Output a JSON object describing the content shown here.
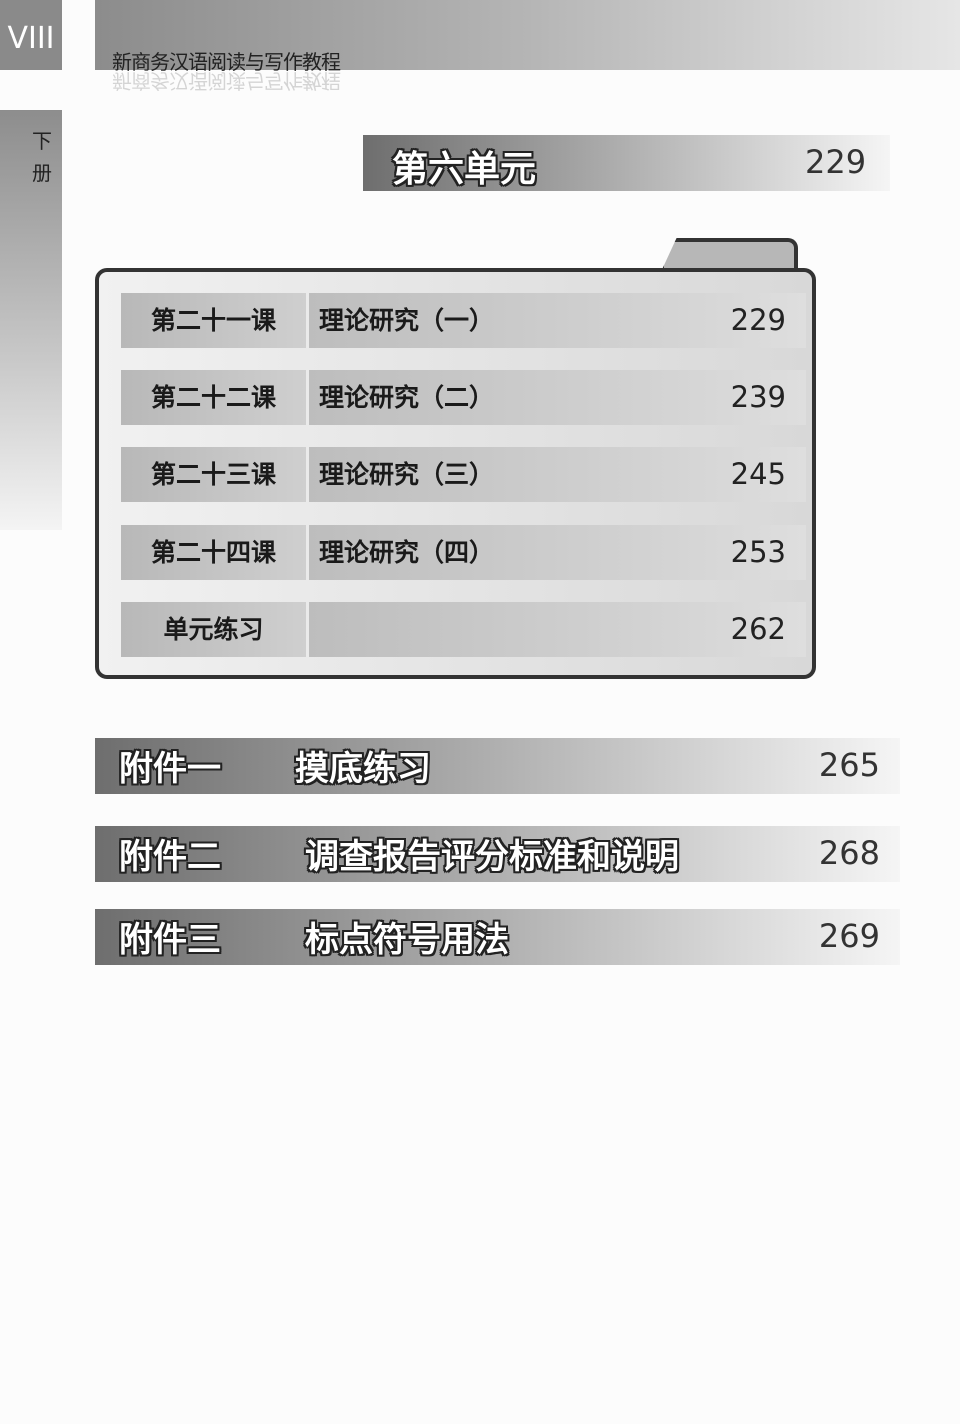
{
  "page_number": "VIII",
  "book_title": "新商务汉语阅读与写作教程",
  "volume": "下册",
  "unit": {
    "title": "第六单元",
    "page": "229"
  },
  "lessons": [
    {
      "label": "第二十一课",
      "title": "理论研究（一）",
      "page": "229"
    },
    {
      "label": "第二十二课",
      "title": "理论研究（二）",
      "page": "239"
    },
    {
      "label": "第二十三课",
      "title": "理论研究（三）",
      "page": "245"
    },
    {
      "label": "第二十四课",
      "title": "理论研究（四）",
      "page": "253"
    },
    {
      "label": "单元练习",
      "title": "",
      "page": "262"
    }
  ],
  "appendices": [
    {
      "label": "附件一",
      "title": "摸底练习",
      "page": "265"
    },
    {
      "label": "附件二",
      "title": "调查报告评分标准和说明",
      "page": "268"
    },
    {
      "label": "附件三",
      "title": "标点符号用法",
      "page": "269"
    }
  ]
}
